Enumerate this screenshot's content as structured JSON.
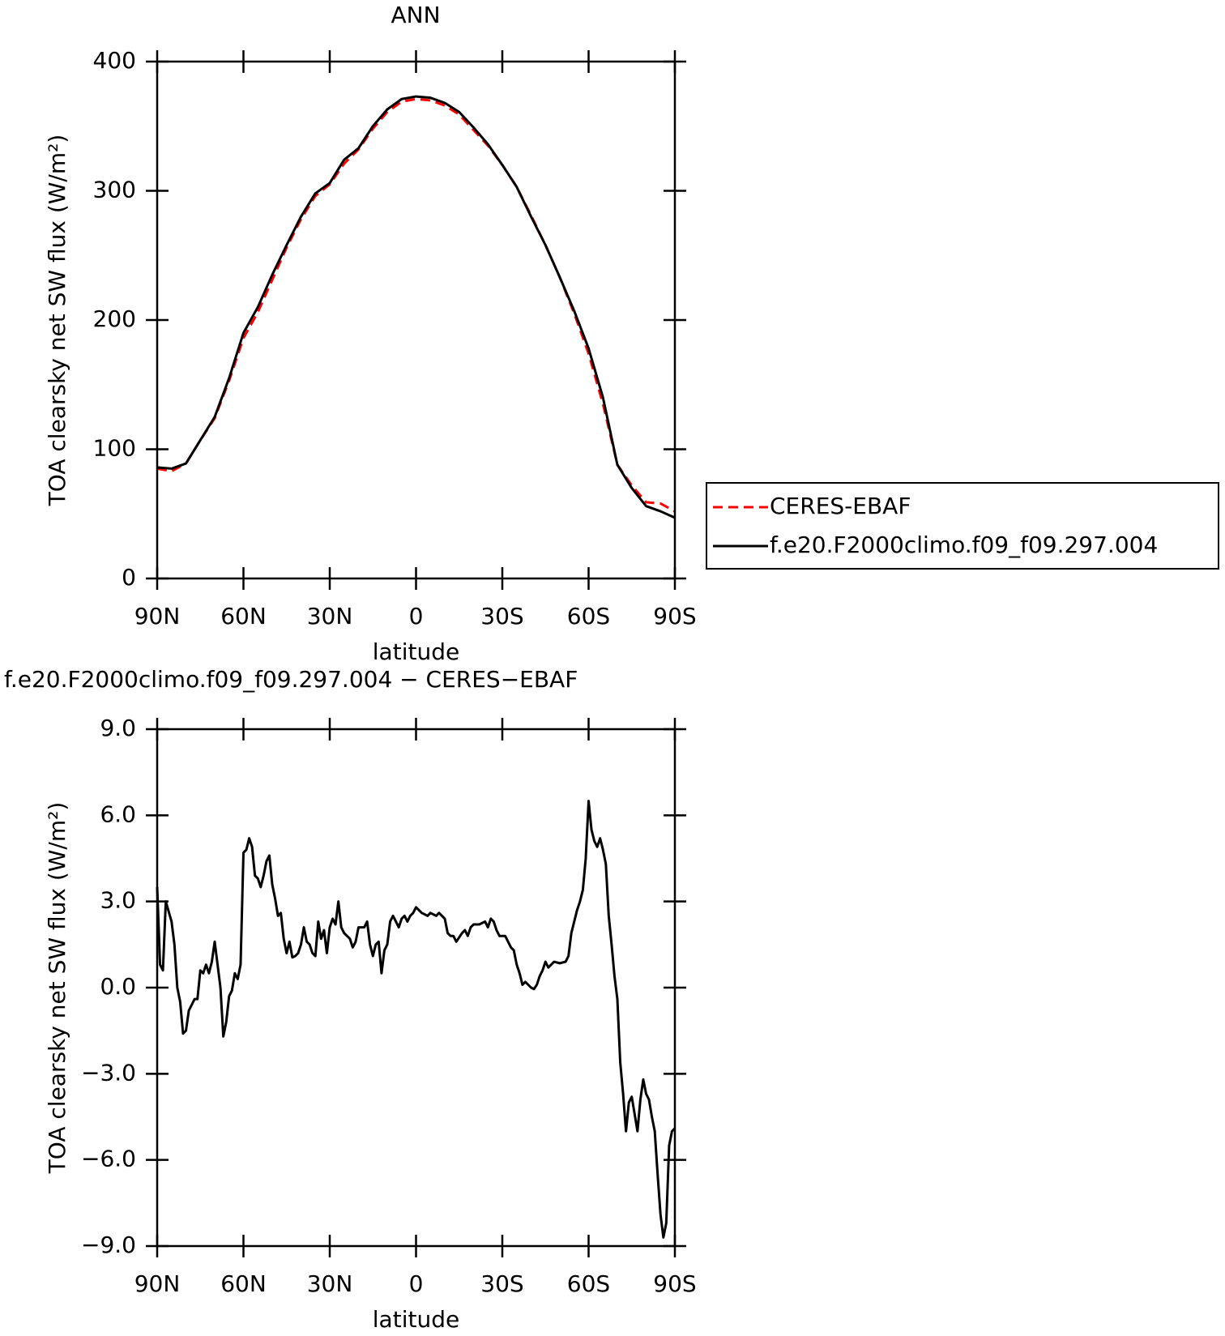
{
  "chart_data": [
    {
      "type": "line",
      "title": "ANN",
      "xlabel": "latitude",
      "ylabel": "TOA clearsky net SW flux (W/m²)",
      "x": [
        90,
        85,
        80,
        75,
        70,
        65,
        60,
        55,
        50,
        45,
        40,
        35,
        30,
        25,
        20,
        15,
        10,
        5,
        0,
        -5,
        -10,
        -15,
        -20,
        -25,
        -30,
        -35,
        -40,
        -45,
        -50,
        -55,
        -60,
        -65,
        -70,
        -75,
        -80,
        -85,
        -90
      ],
      "series": [
        {
          "name": "CERES-EBAF",
          "color": "#ff0000",
          "dash": true,
          "values": [
            85,
            83,
            89,
            107,
            124,
            153,
            186,
            206,
            231,
            256,
            278,
            296,
            305,
            321,
            332,
            348,
            361,
            369,
            371,
            370,
            366,
            359,
            347,
            335,
            320,
            303,
            281,
            258,
            233,
            205,
            174,
            135,
            88,
            72,
            59,
            58,
            52
          ]
        },
        {
          "name": "f.e20.F2000climo.f09_f09.297.004",
          "color": "#000000",
          "dash": false,
          "values": [
            86,
            85,
            89,
            107,
            125,
            155,
            190,
            210,
            235,
            258,
            280,
            298,
            306,
            324,
            333,
            350,
            363,
            371,
            373,
            372,
            368,
            361,
            349,
            336,
            320,
            303,
            280,
            258,
            233,
            207,
            178,
            140,
            88,
            70,
            56,
            52,
            47
          ]
        }
      ],
      "xlim": [
        90,
        -90
      ],
      "xticks": [
        {
          "value": 90,
          "label": "90N"
        },
        {
          "value": 60,
          "label": "60N"
        },
        {
          "value": 30,
          "label": "30N"
        },
        0,
        {
          "value": -30,
          "label": "30S"
        },
        {
          "value": -60,
          "label": "60S"
        },
        {
          "value": -90,
          "label": "90S"
        }
      ],
      "ylim": [
        0,
        400
      ],
      "yticks": [
        0,
        100,
        200,
        300,
        400
      ],
      "legend": "right"
    },
    {
      "type": "line",
      "title": "f.e20.F2000climo.f09_f09.297.004 − CERES−EBAF",
      "xlabel": "latitude",
      "ylabel": "TOA clearsky net SW flux (W/m²)",
      "x": [
        90,
        89,
        88,
        87,
        85,
        84,
        83,
        82,
        81,
        80,
        79,
        77,
        76,
        75,
        74,
        73,
        72,
        71,
        70,
        68,
        67,
        66,
        65,
        64,
        63,
        62,
        61,
        60,
        59,
        58,
        57,
        56,
        55,
        54,
        53,
        52,
        51,
        50,
        49,
        48,
        47,
        46,
        45,
        44,
        43,
        42,
        41,
        40,
        39,
        38,
        37,
        36,
        35,
        34,
        33,
        32,
        31,
        30,
        29,
        28,
        27,
        26,
        25,
        24,
        23,
        22,
        21,
        20,
        18,
        17,
        16,
        15,
        14,
        13,
        12,
        11,
        10,
        9,
        8,
        7,
        6,
        5,
        4,
        3,
        2,
        1,
        0,
        -2,
        -4,
        -5,
        -7,
        -8,
        -10,
        -11,
        -12,
        -13,
        -14,
        -16,
        -17,
        -18,
        -19,
        -20,
        -22,
        -24,
        -25,
        -26,
        -27,
        -28,
        -29,
        -31,
        -32,
        -33,
        -34,
        -35,
        -36,
        -37,
        -38,
        -40,
        -41,
        -42,
        -43,
        -44,
        -45,
        -46,
        -48,
        -50,
        -52,
        -53,
        -54,
        -55,
        -56,
        -57,
        -58,
        -59,
        -60,
        -61,
        -62,
        -63,
        -64,
        -65,
        -66,
        -67,
        -68,
        -69,
        -70,
        -71,
        -72,
        -73,
        -74,
        -75,
        -76,
        -77,
        -78,
        -79,
        -80,
        -81,
        -82,
        -83,
        -84,
        -85,
        -86,
        -87,
        -88,
        -89,
        -90
      ],
      "series": [
        {
          "color": "#000000",
          "dash": false,
          "values": [
            3.5,
            0.8,
            0.6,
            3.0,
            2.3,
            1.5,
            0,
            -0.5,
            -1.6,
            -1.5,
            -0.8,
            -0.4,
            -0.4,
            0.6,
            0.5,
            0.8,
            0.5,
            0.9,
            1.6,
            0,
            -1.7,
            -1.2,
            -0.3,
            -0.1,
            0.5,
            0.3,
            0.8,
            4.7,
            4.8,
            5.2,
            4.9,
            3.9,
            3.8,
            3.5,
            3.9,
            4.4,
            4.6,
            3.6,
            3.1,
            2.5,
            2.6,
            1.7,
            1.2,
            1.6,
            1.05,
            1.1,
            1.2,
            1.5,
            2.1,
            1.6,
            1.5,
            1.2,
            1.1,
            2.3,
            1.7,
            2.0,
            1.2,
            2.1,
            2.4,
            2.2,
            3.0,
            2.1,
            1.9,
            1.8,
            1.7,
            1.4,
            1.6,
            2.1,
            2.1,
            2.3,
            1.5,
            1.1,
            1.5,
            1.6,
            0.5,
            1.3,
            1.5,
            2.3,
            2.5,
            2.3,
            2.1,
            2.4,
            2.5,
            2.3,
            2.5,
            2.6,
            2.8,
            2.6,
            2.5,
            2.6,
            2.5,
            2.6,
            2.4,
            1.9,
            1.8,
            1.8,
            1.6,
            1.9,
            2.0,
            1.8,
            2.1,
            2.2,
            2.2,
            2.3,
            2.1,
            2.4,
            2.3,
            2.0,
            1.8,
            1.8,
            1.6,
            1.4,
            1.3,
            0.8,
            0.5,
            0.1,
            0.2,
            0.0,
            -0.05,
            0.1,
            0.4,
            0.6,
            0.9,
            0.7,
            0.9,
            0.85,
            0.9,
            1.1,
            1.9,
            2.3,
            2.7,
            3.0,
            3.4,
            4.5,
            6.5,
            5.5,
            5.1,
            4.9,
            5.2,
            4.8,
            4.3,
            2.5,
            1.5,
            0.4,
            -0.4,
            -2.6,
            -3.7,
            -5.0,
            -4.0,
            -3.8,
            -4.4,
            -5.0,
            -3.9,
            -3.2,
            -3.7,
            -3.9,
            -4.5,
            -5.0,
            -6.5,
            -7.9,
            -8.7,
            -8.2,
            -5.5,
            -5.0,
            -4.9
          ]
        }
      ],
      "xlim": [
        90,
        -90
      ],
      "xticks": [
        {
          "value": 90,
          "label": "90N"
        },
        {
          "value": 60,
          "label": "60N"
        },
        {
          "value": 30,
          "label": "30N"
        },
        0,
        {
          "value": -30,
          "label": "30S"
        },
        {
          "value": -60,
          "label": "60S"
        },
        {
          "value": -90,
          "label": "90S"
        }
      ],
      "ylim": [
        -9,
        9
      ],
      "yticks": [
        {
          "value": -9,
          "label": "−9.0"
        },
        {
          "value": -6,
          "label": "−6.0"
        },
        {
          "value": -3,
          "label": "−3.0"
        },
        {
          "value": 0,
          "label": "0.0"
        },
        {
          "value": 3,
          "label": "3.0"
        },
        {
          "value": 6,
          "label": "6.0"
        },
        {
          "value": 9,
          "label": "9.0"
        }
      ]
    }
  ]
}
